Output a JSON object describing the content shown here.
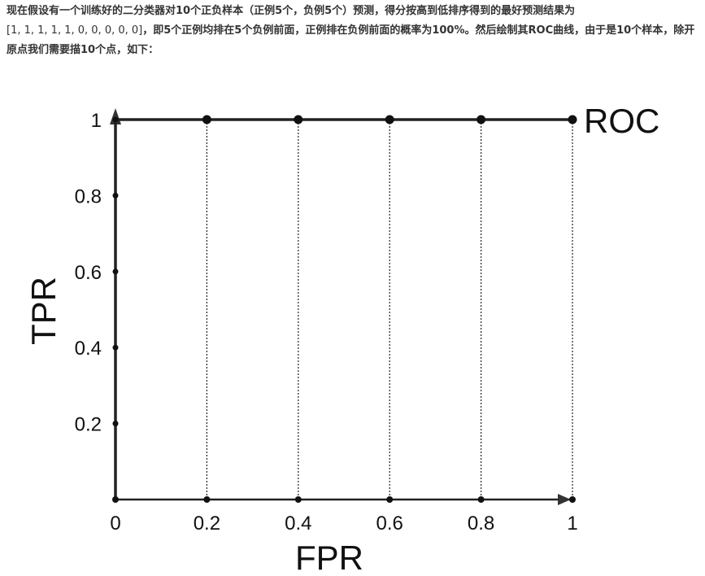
{
  "intro": {
    "line1": "现在假设有一个训练好的二分类器对10个正负样本（正例5个，负例5个）预测，得分按高到低排序得到的最好预测结果为",
    "seq": "[1, 1, 1, 1, 1, 0, 0, 0, 0, 0]",
    "line2": "，即5个正例均排在5个负例前面，正例排在负例前面的概率为100%。然后绘制其ROC曲线，由于是10个样本，除开原点我们需要描10个点，如下："
  },
  "chart_data": {
    "type": "line",
    "xlabel": "FPR",
    "ylabel": "TPR",
    "xlim": [
      0,
      1
    ],
    "ylim": [
      0,
      1
    ],
    "x_ticks": [
      "0",
      "0.2",
      "0.4",
      "0.6",
      "0.8",
      "1"
    ],
    "y_ticks": [
      "0.2",
      "0.4",
      "0.6",
      "0.8",
      "1"
    ],
    "y_tick_values": [
      0.2,
      0.4,
      0.6,
      0.8,
      1
    ],
    "x_tick_values": [
      0,
      0.2,
      0.4,
      0.6,
      0.8,
      1
    ],
    "grid": "dotted vertical guides at x ticks",
    "series": [
      {
        "name": "ROC",
        "x": [
          0,
          0,
          0,
          0,
          0,
          0,
          0.2,
          0.4,
          0.6,
          0.8,
          1
        ],
        "y": [
          0,
          0.2,
          0.4,
          0.6,
          0.8,
          1,
          1,
          1,
          1,
          1,
          1
        ]
      }
    ],
    "legend_placement": "right"
  }
}
